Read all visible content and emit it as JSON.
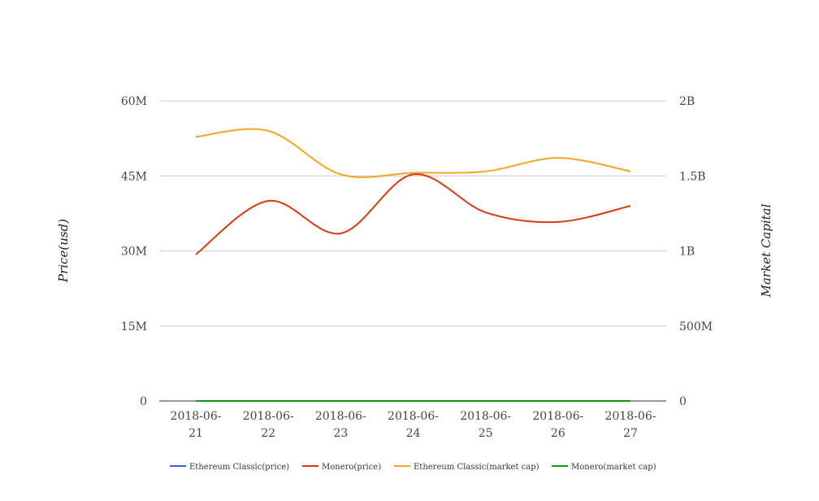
{
  "chart_data": {
    "type": "line",
    "title": "",
    "categories": [
      "2018-06-21",
      "2018-06-22",
      "2018-06-23",
      "2018-06-24",
      "2018-06-25",
      "2018-06-26",
      "2018-06-27"
    ],
    "x_tick_labels": [
      [
        "2018-06-",
        "21"
      ],
      [
        "2018-06-",
        "22"
      ],
      [
        "2018-06-",
        "23"
      ],
      [
        "2018-06-",
        "24"
      ],
      [
        "2018-06-",
        "25"
      ],
      [
        "2018-06-",
        "26"
      ],
      [
        "2018-06-",
        "27"
      ]
    ],
    "ylabel_left": "Price(usd)",
    "ylabel_right": "Market Capital",
    "y_left": {
      "min": 0,
      "max": 60000000,
      "ticks": [
        0,
        15000000,
        30000000,
        45000000,
        60000000
      ],
      "tick_labels": [
        "0",
        "15M",
        "30M",
        "45M",
        "60M"
      ]
    },
    "y_right": {
      "min": 0,
      "max": 2000000000,
      "ticks": [
        0,
        500000000,
        1000000000,
        1500000000,
        2000000000
      ],
      "tick_labels": [
        "0",
        "500M",
        "1B",
        "1.5B",
        "2B"
      ]
    },
    "grid": true,
    "legend_position": "bottom",
    "series": [
      {
        "name": "Ethereum Classic(price)",
        "axis": "left",
        "color": "#3366cc",
        "values": [
          12.5,
          12.6,
          12.2,
          12.3,
          12.4,
          12.4,
          12.5
        ]
      },
      {
        "name": "Monero(price)",
        "axis": "left",
        "color": "#dc3912",
        "values": [
          29300000,
          40000000,
          33500000,
          45300000,
          37700000,
          35800000,
          39000000
        ]
      },
      {
        "name": "Ethereum Classic(market cap)",
        "axis": "right",
        "color": "#f5a623",
        "values": [
          1760000000,
          1800000000,
          1510000000,
          1520000000,
          1530000000,
          1620000000,
          1530000000
        ]
      },
      {
        "name": "Monero(market cap)",
        "axis": "right",
        "color": "#109618",
        "values": [
          100,
          105,
          98,
          112,
          104,
          101,
          103
        ]
      }
    ]
  }
}
